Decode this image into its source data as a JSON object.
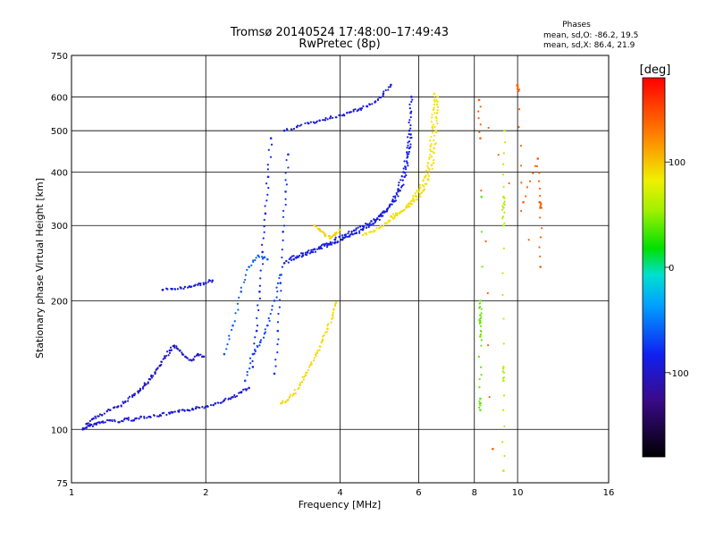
{
  "chart_data": {
    "type": "scatter",
    "title": "Tromsø 20140524 17:48:00–17:49:43",
    "subtitle": "RwPretec (8p)",
    "xlabel": "Frequency [MHz]",
    "ylabel": "Stationary phase Virtual Height [km]",
    "x_scale": "log",
    "y_scale": "log",
    "xlim": [
      1,
      16
    ],
    "ylim": [
      75,
      750
    ],
    "x_ticks": [
      1,
      2,
      4,
      6,
      8,
      10,
      16
    ],
    "x_tick_labels": [
      "1",
      "2",
      "4",
      "6",
      "8",
      "10",
      "16"
    ],
    "y_ticks": [
      75,
      100,
      200,
      300,
      400,
      500,
      600,
      750
    ],
    "y_tick_labels": [
      "75",
      "100",
      "200",
      "300",
      "400",
      "500",
      "600",
      "750"
    ],
    "grid": true,
    "stats": {
      "heading": "Phases",
      "line_o": "mean, sd,O: -86.2, 19.5",
      "line_x": "mean, sd,X:  86.4, 21.9"
    },
    "colorbar": {
      "label": "[deg]",
      "range": [
        -180,
        180
      ],
      "tick_values": [
        100,
        0,
        -100
      ],
      "tick_labels": [
        "100",
        "0",
        "-100"
      ]
    },
    "colors": {
      "o_trace": "#2020e0",
      "x_trace": "#e8e020",
      "axis": "#000000"
    },
    "traces": [
      {
        "phase": -95,
        "points": [
          [
            1.06,
            100
          ],
          [
            1.08,
            101
          ],
          [
            1.1,
            102
          ],
          [
            1.13,
            103
          ],
          [
            1.17,
            104
          ],
          [
            1.22,
            105
          ],
          [
            1.28,
            104
          ],
          [
            1.33,
            106
          ],
          [
            1.38,
            105
          ],
          [
            1.43,
            107
          ],
          [
            1.5,
            107
          ],
          [
            1.58,
            108
          ],
          [
            1.66,
            109
          ],
          [
            1.74,
            110
          ],
          [
            1.82,
            111
          ],
          [
            1.9,
            112
          ],
          [
            2.0,
            113
          ],
          [
            2.1,
            115
          ],
          [
            2.2,
            117
          ],
          [
            2.3,
            119
          ],
          [
            2.4,
            122
          ],
          [
            2.5,
            125
          ]
        ]
      },
      {
        "phase": -100,
        "points": [
          [
            1.08,
            103
          ],
          [
            1.12,
            106
          ],
          [
            1.17,
            108
          ],
          [
            1.22,
            111
          ],
          [
            1.27,
            113
          ],
          [
            1.32,
            116
          ],
          [
            1.37,
            120
          ],
          [
            1.42,
            123
          ],
          [
            1.46,
            127
          ],
          [
            1.5,
            131
          ],
          [
            1.54,
            136
          ],
          [
            1.58,
            141
          ],
          [
            1.62,
            147
          ],
          [
            1.66,
            153
          ],
          [
            1.7,
            157
          ],
          [
            1.75,
            153
          ],
          [
            1.8,
            148
          ],
          [
            1.86,
            145
          ],
          [
            1.92,
            150
          ],
          [
            1.98,
            148
          ]
        ]
      },
      {
        "phase": -92,
        "points": [
          [
            1.6,
            212
          ],
          [
            1.68,
            213
          ],
          [
            1.76,
            214
          ],
          [
            1.84,
            216
          ],
          [
            1.92,
            218
          ],
          [
            2.0,
            220
          ],
          [
            2.07,
            223
          ]
        ]
      },
      {
        "phase": -90,
        "points": [
          [
            3.0,
            245
          ],
          [
            3.15,
            250
          ],
          [
            3.3,
            255
          ],
          [
            3.45,
            260
          ],
          [
            3.6,
            265
          ],
          [
            3.75,
            270
          ],
          [
            3.9,
            274
          ],
          [
            4.05,
            278
          ],
          [
            4.2,
            283
          ],
          [
            4.35,
            288
          ],
          [
            4.5,
            294
          ],
          [
            4.65,
            300
          ],
          [
            4.8,
            307
          ],
          [
            4.95,
            316
          ],
          [
            5.1,
            327
          ],
          [
            5.25,
            342
          ],
          [
            5.4,
            365
          ],
          [
            5.55,
            400
          ],
          [
            5.65,
            445
          ],
          [
            5.72,
            500
          ],
          [
            5.76,
            550
          ],
          [
            5.78,
            600
          ]
        ]
      },
      {
        "phase": -88,
        "points": [
          [
            3.1,
            252
          ],
          [
            3.3,
            258
          ],
          [
            3.5,
            264
          ],
          [
            3.7,
            271
          ],
          [
            3.9,
            278
          ],
          [
            4.1,
            285
          ],
          [
            4.3,
            292
          ],
          [
            4.5,
            299
          ],
          [
            4.7,
            307
          ],
          [
            4.9,
            316
          ],
          [
            5.1,
            327
          ],
          [
            5.3,
            342
          ],
          [
            5.45,
            362
          ],
          [
            5.58,
            390
          ],
          [
            5.66,
            420
          ],
          [
            5.72,
            455
          ],
          [
            5.76,
            490
          ]
        ]
      },
      {
        "phase": -95,
        "points": [
          [
            3.0,
            500
          ],
          [
            3.2,
            510
          ],
          [
            3.4,
            520
          ],
          [
            3.6,
            528
          ],
          [
            3.8,
            535
          ],
          [
            4.0,
            543
          ],
          [
            4.2,
            552
          ],
          [
            4.4,
            560
          ],
          [
            4.6,
            570
          ],
          [
            4.8,
            585
          ],
          [
            5.0,
            610
          ],
          [
            5.2,
            640
          ]
        ]
      },
      {
        "phase": 88,
        "points": [
          [
            4.5,
            285
          ],
          [
            4.7,
            290
          ],
          [
            4.9,
            296
          ],
          [
            5.1,
            304
          ],
          [
            5.3,
            313
          ],
          [
            5.5,
            324
          ],
          [
            5.7,
            338
          ],
          [
            5.9,
            352
          ],
          [
            6.05,
            368
          ],
          [
            6.2,
            390
          ],
          [
            6.3,
            420
          ],
          [
            6.38,
            460
          ],
          [
            6.44,
            510
          ],
          [
            6.48,
            560
          ],
          [
            6.5,
            610
          ]
        ]
      },
      {
        "phase": 90,
        "points": [
          [
            5.2,
            315
          ],
          [
            5.45,
            322
          ],
          [
            5.7,
            332
          ],
          [
            5.95,
            345
          ],
          [
            6.15,
            362
          ],
          [
            6.3,
            385
          ],
          [
            6.42,
            415
          ],
          [
            6.5,
            455
          ],
          [
            6.56,
            500
          ],
          [
            6.6,
            550
          ],
          [
            6.62,
            600
          ]
        ]
      },
      {
        "phase": 92,
        "points": [
          [
            2.95,
            115
          ],
          [
            3.05,
            117
          ],
          [
            3.15,
            121
          ],
          [
            3.25,
            127
          ],
          [
            3.35,
            134
          ],
          [
            3.45,
            142
          ],
          [
            3.55,
            151
          ],
          [
            3.65,
            161
          ],
          [
            3.75,
            172
          ],
          [
            3.85,
            185
          ],
          [
            3.92,
            198
          ]
        ]
      },
      {
        "phase": 94,
        "points": [
          [
            3.5,
            300
          ],
          [
            3.6,
            293
          ],
          [
            3.7,
            286
          ],
          [
            3.8,
            280
          ],
          [
            3.9,
            285
          ],
          [
            4.0,
            293
          ]
        ]
      },
      {
        "phase": -82,
        "points": [
          [
            2.55,
            140
          ],
          [
            2.6,
            170
          ],
          [
            2.64,
            210
          ],
          [
            2.68,
            260
          ],
          [
            2.72,
            320
          ],
          [
            2.76,
            390
          ],
          [
            2.8,
            480
          ]
        ]
      },
      {
        "phase": -75,
        "points": [
          [
            2.85,
            135
          ],
          [
            2.9,
            170
          ],
          [
            2.94,
            220
          ],
          [
            2.98,
            290
          ],
          [
            3.02,
            360
          ],
          [
            3.06,
            440
          ]
        ]
      },
      {
        "phase": -60,
        "points": [
          [
            2.2,
            150
          ],
          [
            2.3,
            175
          ],
          [
            2.4,
            210
          ],
          [
            2.5,
            240
          ],
          [
            2.62,
            255
          ],
          [
            2.75,
            250
          ]
        ]
      },
      {
        "phase": -70,
        "points": [
          [
            2.45,
            130
          ],
          [
            2.55,
            150
          ],
          [
            2.65,
            160
          ],
          [
            2.75,
            175
          ],
          [
            2.85,
            200
          ],
          [
            2.95,
            230
          ]
        ]
      },
      {
        "phase": 40,
        "points": [
          [
            8.25,
            200
          ],
          [
            8.25,
            185
          ],
          [
            8.25,
            178
          ],
          [
            8.25,
            165
          ],
          [
            8.25,
            118
          ],
          [
            8.25,
            111
          ],
          [
            8.3,
            350
          ]
        ]
      },
      {
        "phase": 60,
        "points": [
          [
            9.35,
            500
          ],
          [
            9.3,
            350
          ],
          [
            9.3,
            330
          ],
          [
            9.3,
            300
          ],
          [
            9.3,
            140
          ],
          [
            9.3,
            130
          ],
          [
            9.3,
            80
          ]
        ]
      },
      {
        "phase": 140,
        "points": [
          [
            10.0,
            640
          ],
          [
            10.05,
            620
          ],
          [
            10.3,
            340
          ],
          [
            11.1,
            430
          ],
          [
            11.2,
            340
          ],
          [
            11.3,
            330
          ],
          [
            11.25,
            240
          ],
          [
            8.2,
            590
          ],
          [
            8.25,
            480
          ],
          [
            8.8,
            90
          ]
        ]
      }
    ]
  }
}
